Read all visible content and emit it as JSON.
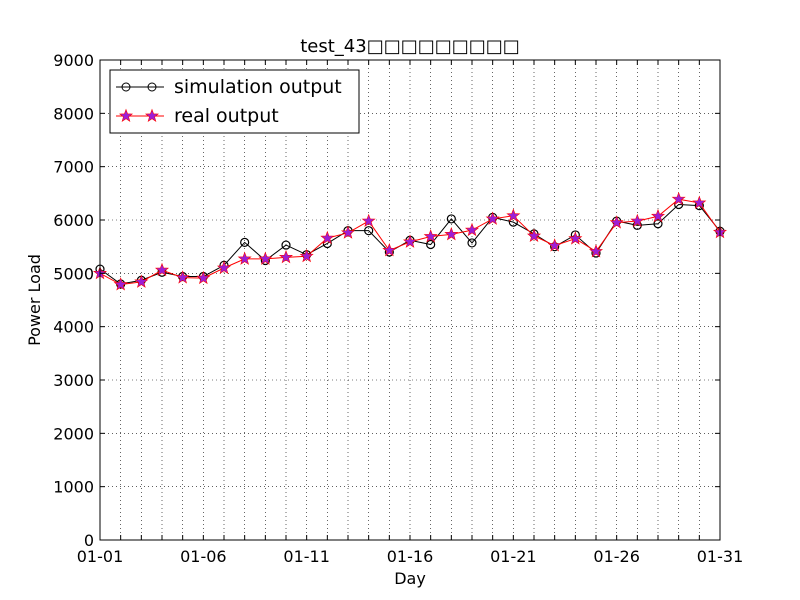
{
  "chart_data": {
    "type": "line",
    "title": "test_43□□□□□□□□□",
    "xlabel": "Day",
    "ylabel": "Power Load",
    "ylim": [
      0,
      9000
    ],
    "yticks": [
      0,
      1000,
      2000,
      3000,
      4000,
      5000,
      6000,
      7000,
      8000,
      9000
    ],
    "x": [
      "01-01",
      "01-02",
      "01-03",
      "01-04",
      "01-05",
      "01-06",
      "01-07",
      "01-08",
      "01-09",
      "01-10",
      "01-11",
      "01-12",
      "01-13",
      "01-14",
      "01-15",
      "01-16",
      "01-17",
      "01-18",
      "01-19",
      "01-20",
      "01-21",
      "01-22",
      "01-23",
      "01-24",
      "01-25",
      "01-26",
      "01-27",
      "01-28",
      "01-29",
      "01-30",
      "01-31"
    ],
    "xticks": [
      "01-01",
      "01-06",
      "01-11",
      "01-16",
      "01-21",
      "01-26",
      "01-31"
    ],
    "grid": true,
    "legend_position": "top-left",
    "series": [
      {
        "name": "simulation output",
        "color": "#000000",
        "marker": "open-circle",
        "values": [
          5080,
          4800,
          4870,
          5020,
          4940,
          4940,
          5150,
          5580,
          5240,
          5530,
          5350,
          5560,
          5800,
          5800,
          5400,
          5620,
          5540,
          6020,
          5570,
          6050,
          5960,
          5740,
          5500,
          5720,
          5380,
          5980,
          5900,
          5930,
          6290,
          6270,
          5790
        ]
      },
      {
        "name": "real output",
        "color": "#ff0000",
        "marker_color": "#9c1fd6",
        "marker": "star",
        "values": [
          5000,
          4790,
          4840,
          5060,
          4920,
          4910,
          5100,
          5270,
          5270,
          5300,
          5320,
          5660,
          5760,
          5980,
          5430,
          5590,
          5690,
          5730,
          5810,
          6020,
          6080,
          5700,
          5520,
          5650,
          5410,
          5950,
          5980,
          6070,
          6390,
          6320,
          5770
        ]
      }
    ]
  }
}
